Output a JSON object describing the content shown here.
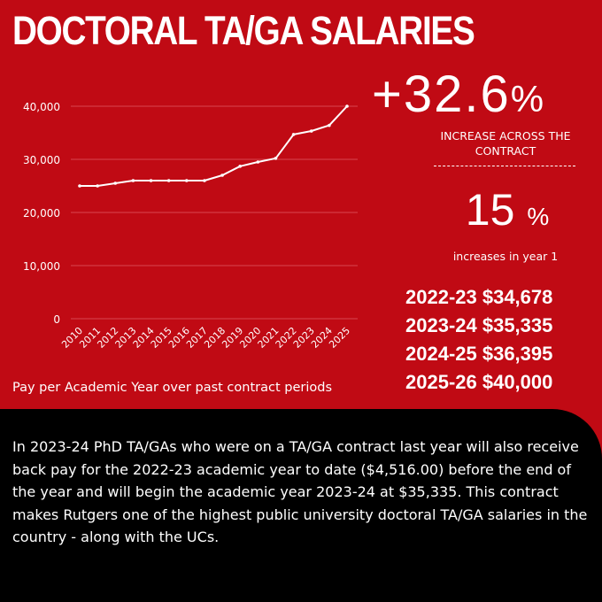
{
  "title": "DOCTORAL TA/GA SALARIES",
  "chart_caption": "Pay per Academic Year over past contract periods",
  "headline_increase": {
    "value": "+32.6",
    "symbol": "%",
    "caption": "INCREASE ACROSS THE CONTRACT"
  },
  "year_one_increase": {
    "value": "15",
    "symbol": "%",
    "caption": "increases in year 1"
  },
  "salaries": [
    "2022-23 $34,678",
    "2023-24 $35,335",
    "2024-25 $36,395",
    "2025-26 $40,000"
  ],
  "bottom_text": "In 2023-24 PhD TA/GAs who were on a TA/GA contract last year will also receive back pay for the 2022-23  academic year to date ($4,516.00) before the end of the year and will begin the academic year 2023-24 at $35,335. This contract makes Rutgers one of the highest public university doctoral TA/GA salaries in the country - along with the UCs.",
  "colors": {
    "background": "#c00a14",
    "panel": "#000000",
    "line": "#ffffff",
    "grid": "#d9474f"
  },
  "chart_data": {
    "type": "line",
    "x": [
      "2010",
      "2011",
      "2012",
      "2013",
      "2014",
      "2015",
      "2016",
      "2017",
      "2018",
      "2019",
      "2020",
      "2021",
      "2022",
      "2023",
      "2024",
      "2025"
    ],
    "series": [
      {
        "values": [
          25000,
          25000,
          25500,
          26000,
          26000,
          26000,
          26000,
          26000,
          27000,
          28700,
          29500,
          30200,
          34678,
          35335,
          36395,
          40000
        ]
      }
    ],
    "yticks": [
      0,
      10000,
      20000,
      30000,
      40000
    ],
    "ytick_labels": [
      "0",
      "10,000",
      "20,000",
      "30,000",
      "40,000"
    ],
    "ylim": [
      0,
      40000
    ],
    "grid": true,
    "title": "",
    "xlabel": "",
    "ylabel": ""
  }
}
